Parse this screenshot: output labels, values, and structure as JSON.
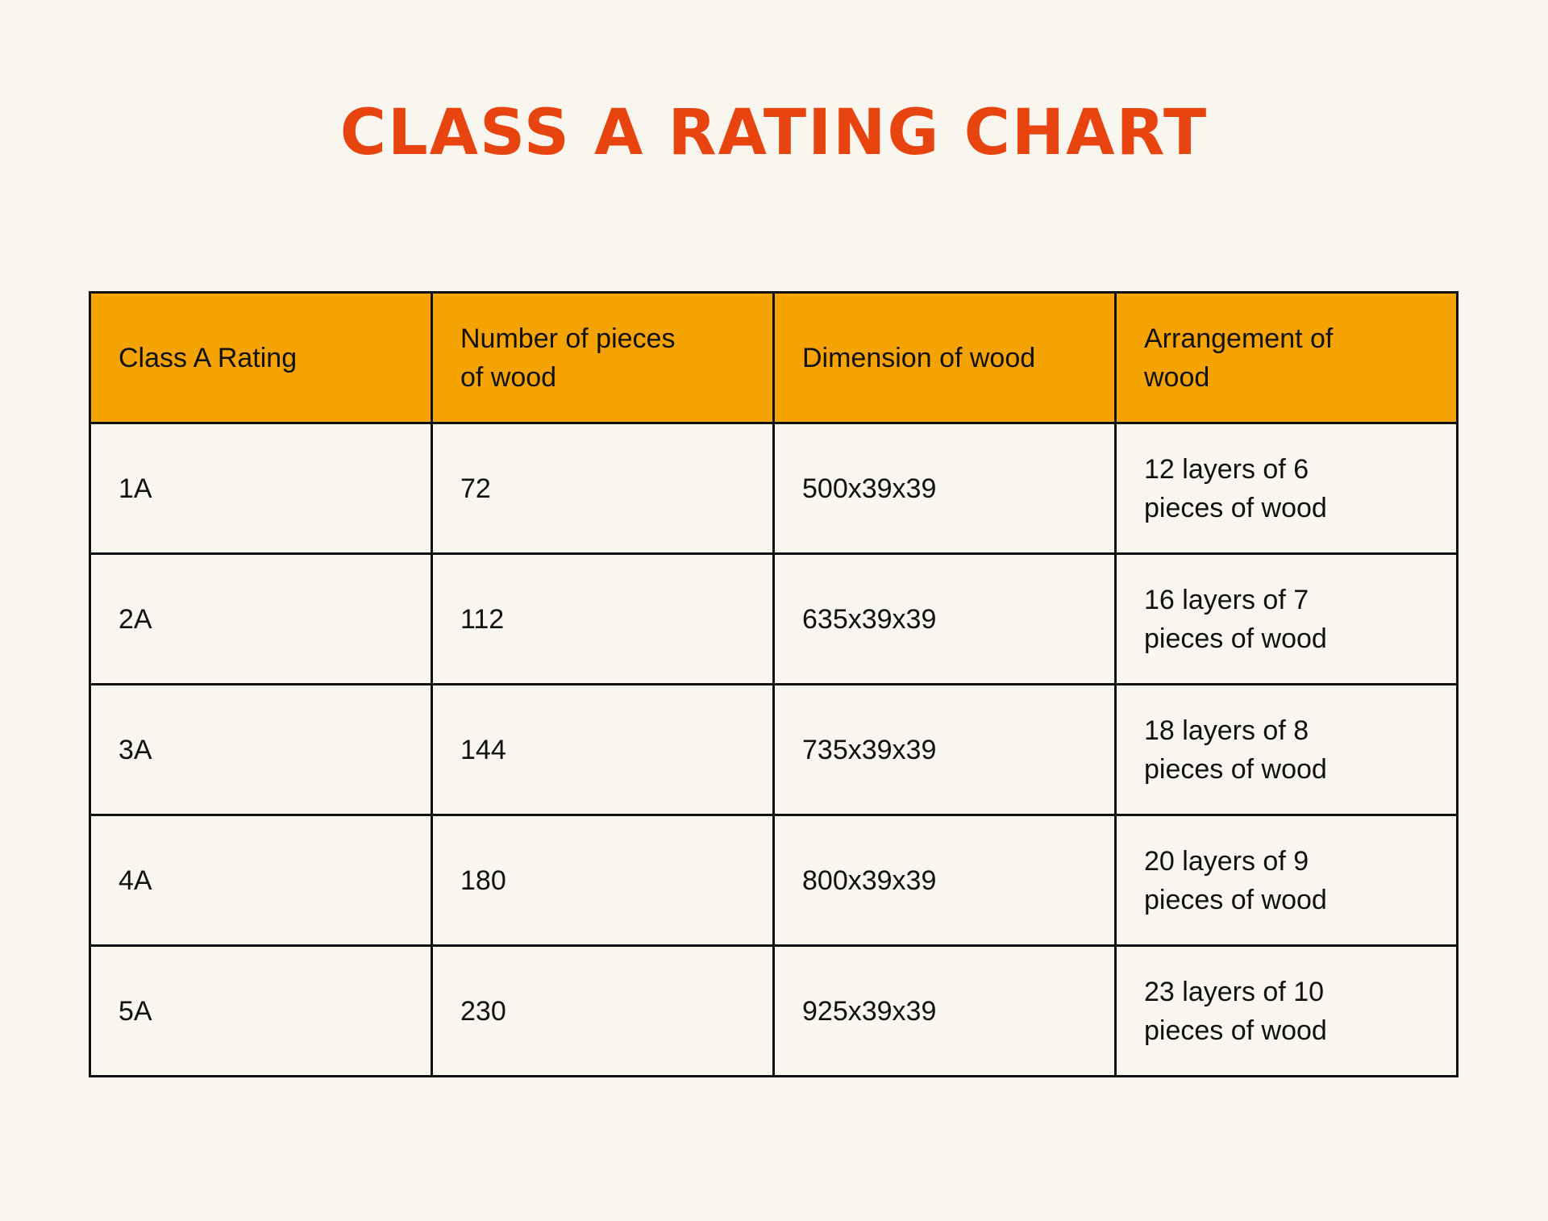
{
  "title": "CLASS A RATING CHART",
  "table": {
    "header": [
      "Class A Rating",
      "Number of pieces of wood",
      "Dimension of wood",
      "Arrangement of wood"
    ],
    "rows": [
      [
        "1A",
        "72",
        "500x39x39",
        "12 layers of 6 pieces of wood"
      ],
      [
        "2A",
        "112",
        "635x39x39",
        "16 layers of 7 pieces of wood"
      ],
      [
        "3A",
        "144",
        "735x39x39",
        "18 layers of 8 pieces of wood"
      ],
      [
        "4A",
        "180",
        "800x39x39",
        "20 layers of 9 pieces of wood"
      ],
      [
        "5A",
        "230",
        "925x39x39",
        "23 layers of 10 pieces of wood"
      ]
    ]
  }
}
